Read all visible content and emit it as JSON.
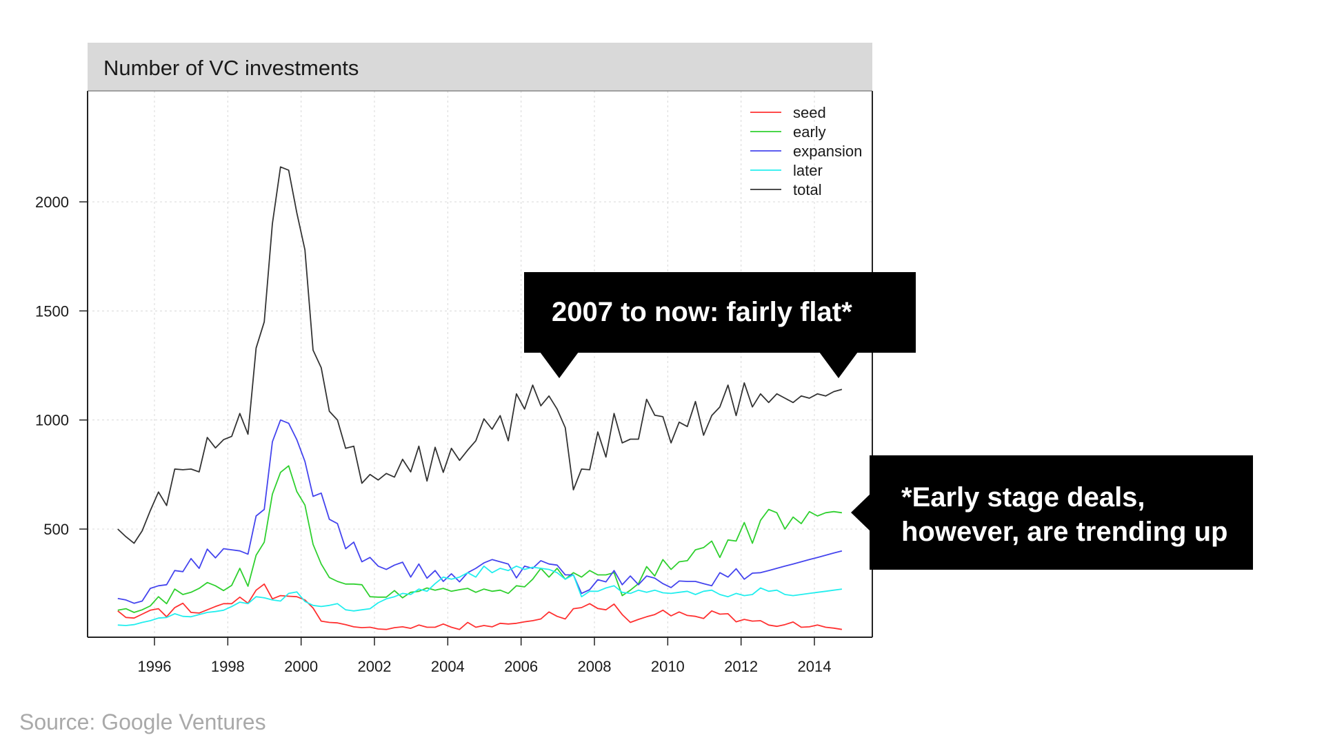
{
  "source": "Source: Google Ventures",
  "callouts": {
    "flat": "2007 to now: fairly flat*",
    "early_line1": "*Early stage deals,",
    "early_line2": "however, are trending up"
  },
  "chart_data": {
    "type": "line",
    "title": "Number of VC investments",
    "xlabel": "",
    "ylabel": "",
    "xlim": [
      1995,
      2015
    ],
    "ylim": [
      0,
      2260
    ],
    "xticks": [
      1996,
      1998,
      2000,
      2002,
      2004,
      2006,
      2008,
      2010,
      2012,
      2014
    ],
    "yticks": [
      500,
      1000,
      1500,
      2000
    ],
    "grid": true,
    "legend_position": "top-right",
    "x_quarters": "quarterly from 1995.00 to 2014.75",
    "series": [
      {
        "name": "seed",
        "color": "#ff3030",
        "values": [
          125,
          95,
          92,
          110,
          128,
          135,
          98,
          140,
          160,
          118,
          115,
          130,
          145,
          158,
          158,
          188,
          160,
          220,
          248,
          180,
          195,
          192,
          190,
          175,
          138,
          78,
          72,
          70,
          62,
          52,
          48,
          50,
          42,
          40,
          48,
          52,
          45,
          60,
          50,
          50,
          65,
          50,
          40,
          72,
          50,
          58,
          52,
          68,
          65,
          68,
          75,
          80,
          88,
          120,
          100,
          88,
          135,
          140,
          158,
          136,
          130,
          156,
          108,
          72,
          86,
          98,
          108,
          128,
          102,
          120,
          104,
          100,
          90,
          125,
          110,
          112,
          75,
          86,
          78,
          80,
          60,
          54,
          62,
          74,
          50,
          52,
          60,
          50,
          46,
          40
        ]
      },
      {
        "name": "early",
        "color": "#2fd02f",
        "values": [
          128,
          135,
          118,
          130,
          148,
          190,
          158,
          225,
          200,
          210,
          228,
          255,
          240,
          218,
          242,
          320,
          238,
          380,
          440,
          660,
          760,
          790,
          672,
          610,
          430,
          340,
          278,
          260,
          248,
          248,
          245,
          190,
          188,
          188,
          218,
          185,
          210,
          215,
          230,
          220,
          228,
          215,
          222,
          228,
          210,
          225,
          215,
          220,
          205,
          240,
          235,
          270,
          320,
          280,
          320,
          270,
          300,
          280,
          310,
          290,
          290,
          300,
          195,
          220,
          250,
          328,
          285,
          360,
          315,
          350,
          355,
          405,
          415,
          445,
          370,
          450,
          445,
          530,
          435,
          540,
          590,
          575,
          500,
          555,
          525,
          580,
          560,
          575,
          580,
          575
        ]
      },
      {
        "name": "expansion",
        "color": "#4444ee",
        "values": [
          182,
          175,
          160,
          170,
          228,
          240,
          245,
          310,
          305,
          365,
          320,
          408,
          368,
          410,
          405,
          400,
          385,
          560,
          590,
          900,
          1000,
          985,
          910,
          810,
          650,
          665,
          545,
          525,
          410,
          440,
          350,
          370,
          330,
          315,
          335,
          348,
          280,
          340,
          275,
          310,
          260,
          295,
          258,
          300,
          320,
          345,
          360,
          350,
          340,
          276,
          330,
          320,
          355,
          340,
          335,
          290,
          290,
          205,
          222,
          268,
          258,
          310,
          245,
          285,
          245,
          285,
          275,
          250,
          232,
          262,
          260,
          260,
          250,
          240,
          300,
          280,
          318,
          270,
          298,
          300,
          310,
          320,
          330,
          340,
          350,
          360,
          370,
          380,
          390,
          400
        ]
      },
      {
        "name": "later",
        "color": "#22eeee",
        "values": [
          60,
          58,
          62,
          72,
          80,
          92,
          95,
          112,
          100,
          98,
          108,
          118,
          122,
          128,
          145,
          165,
          158,
          190,
          185,
          175,
          170,
          205,
          212,
          168,
          150,
          145,
          150,
          158,
          130,
          125,
          130,
          135,
          162,
          180,
          190,
          205,
          200,
          225,
          215,
          250,
          280,
          270,
          280,
          300,
          280,
          330,
          300,
          320,
          310,
          330,
          315,
          325,
          320,
          315,
          300,
          270,
          290,
          190,
          215,
          215,
          230,
          240,
          210,
          205,
          220,
          210,
          220,
          208,
          205,
          210,
          215,
          200,
          215,
          220,
          200,
          190,
          205,
          195,
          200,
          230,
          215,
          220,
          200,
          195,
          200,
          205,
          210,
          215,
          220,
          225
        ]
      },
      {
        "name": "total",
        "color": "#333333",
        "values": [
          500,
          465,
          435,
          492,
          585,
          670,
          608,
          775,
          772,
          775,
          762,
          920,
          872,
          910,
          925,
          1030,
          935,
          1330,
          1450,
          1900,
          2160,
          2145,
          1950,
          1780,
          1320,
          1240,
          1040,
          1000,
          870,
          880,
          710,
          750,
          725,
          755,
          738,
          820,
          762,
          880,
          720,
          875,
          760,
          870,
          815,
          862,
          905,
          1005,
          958,
          1020,
          905,
          1120,
          1050,
          1160,
          1065,
          1110,
          1050,
          965,
          680,
          775,
          772,
          945,
          830,
          1030,
          895,
          912,
          912,
          1095,
          1022,
          1015,
          895,
          990,
          970,
          1085,
          930,
          1020,
          1060,
          1160,
          1020,
          1170,
          1060,
          1120,
          1080,
          1120,
          1100,
          1080,
          1110,
          1100,
          1120,
          1110,
          1130,
          1140
        ]
      }
    ]
  }
}
